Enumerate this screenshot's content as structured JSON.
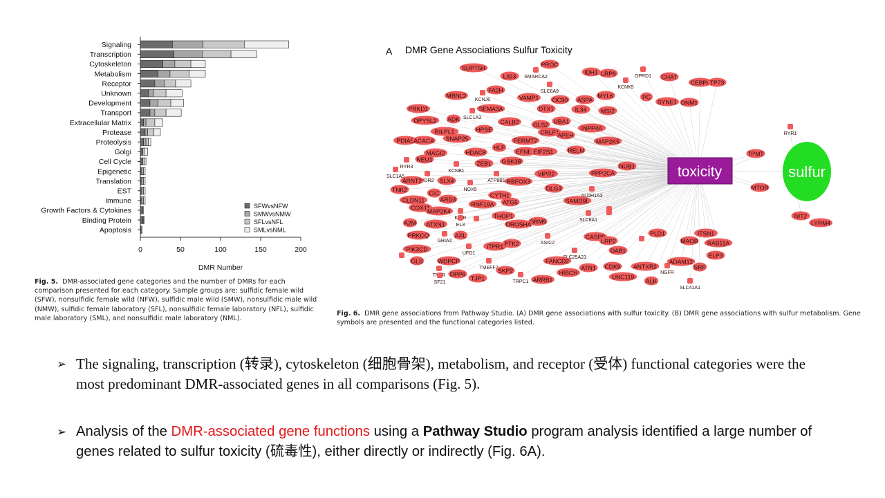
{
  "fig5": {
    "chart_data": {
      "type": "bar",
      "stacked": true,
      "orientation": "horizontal",
      "categories": [
        "Signaling",
        "Transcription",
        "Cytoskeleton",
        "Metabolism",
        "Receptor",
        "Unknown",
        "Development",
        "Transport",
        "Extracellular Matrix",
        "Protease",
        "Proteolysis",
        "Golgi",
        "Cell Cycle",
        "Epigenetic",
        "Translation",
        "EST",
        "Immune",
        "Growth Factors & Cytokines",
        "Binding Protein",
        "Apoptosis"
      ],
      "series": [
        {
          "name": "SFWvsNFW",
          "color": "#6b6b6b",
          "values": [
            40,
            42,
            28,
            22,
            18,
            10,
            12,
            12,
            4,
            6,
            4,
            2,
            2,
            1,
            1,
            1,
            1,
            2,
            2,
            1
          ]
        },
        {
          "name": "SMWvsNMW",
          "color": "#a6a6a6",
          "values": [
            38,
            35,
            15,
            15,
            12,
            6,
            10,
            6,
            3,
            3,
            3,
            1,
            1,
            1,
            1,
            1,
            1,
            1,
            1,
            1
          ]
        },
        {
          "name": "SFLvsNFL",
          "color": "#c9c9c9",
          "values": [
            52,
            36,
            20,
            24,
            14,
            16,
            16,
            14,
            11,
            8,
            3,
            2,
            2,
            2,
            2,
            2,
            2,
            0,
            1,
            0
          ]
        },
        {
          "name": "SMLvsNML",
          "color": "#efefef",
          "values": [
            55,
            32,
            18,
            20,
            19,
            20,
            16,
            19,
            10,
            8,
            3,
            4,
            2,
            2,
            2,
            2,
            2,
            1,
            1,
            0
          ]
        }
      ],
      "xlabel": "DMR Number",
      "xlim": [
        0,
        200
      ],
      "xticks": [
        "0",
        "50",
        "100",
        "150",
        "200"
      ],
      "legend_position": "bottom-right"
    },
    "caption_label": "Fig. 5.",
    "caption_text": "DMR-associated gene categories and the number of DMRs for each comparison presented for each category. Sample groups are: sulfidic female wild (SFW), nonsulfidic female wild (NFW), sulfidic male wild (SMW), nonsulfidic male wild (NMW), sulfidic female laboratory (SFL), nonsulfidic female laboratory (NFL), sulfidic male laboratory (SML), and nonsulfidic male laboratory (NML)."
  },
  "fig6": {
    "panel_letter": "A",
    "title": "DMR Gene Associations Sulfur Toxicity",
    "hub": "toxicity",
    "hub_color": "#9a1b9a",
    "sulfur": "sulfur",
    "sulfur_color": "#22dd22",
    "node_color": "#ef5b5b",
    "genes": [
      "SUPT5H",
      "PROC",
      "SMARCA2",
      "IDH1",
      "LRP6",
      "OPRD1",
      "CHAT",
      "CEBPA",
      "TP73",
      "LIG3",
      "SLC6A9",
      "KCNK5",
      "PC",
      "SYNE1",
      "DNM1",
      "VAMP1",
      "MBNL2",
      "FA2H",
      "KCNJ6",
      "OC90",
      "ASPA",
      "MYLK",
      "PRKD1",
      "SEMA3A",
      "DTX1",
      "IL34",
      "MSI2",
      "SLC1A3",
      "DPYSL2",
      "ADK",
      "CALB2",
      "GLS2",
      "UBA1",
      "INPP4A",
      "RILPL1",
      "HPSE",
      "CRLF1",
      "APEH",
      "MAP2K5",
      "SNAP25",
      "FERMT2",
      "PDIA5",
      "ACACA",
      "HLF",
      "EFNB1",
      "EIF2S1",
      "RELN",
      "MAGI2",
      "HDAC8",
      "NEU1",
      "GSK3B",
      "RYR3",
      "ZEB1",
      "NUB1",
      "KCNB1",
      "DDR2",
      "SLC1A5",
      "ATP8B1",
      "PPP2CA",
      "ARNT2",
      "VIPR2",
      "SLX4",
      "RBFOX3",
      "NOX5",
      "TNK2",
      "DLG3",
      "CIC",
      "ALDH1A3",
      "CYTH1",
      "CLDN11",
      "ARD3",
      "ATG5",
      "COX11",
      "SAMD9L",
      "RNF19A",
      "MAP2K4",
      "KIRR",
      "THOP1",
      "EL3",
      "SLC8A1",
      "FRS2",
      "A2M",
      "ATXN1",
      "GRM5",
      "DROSHA",
      "PLD1",
      "ITSN1",
      "PRKCQ",
      "GRIA2",
      "AXL",
      "CASP9",
      "MAOB",
      "RAB11A",
      "ASIC2",
      "LRP2",
      "PIK3CD",
      "UFD1",
      "ITPR1",
      "PTK2",
      "DAB1",
      "ELP3",
      "SLC25A23",
      "GLS",
      "WDPCP",
      "TMEFF2",
      "FANCD2",
      "ATN1",
      "CDK9",
      "ANTXR2",
      "ADAM12",
      "SRF",
      "TNFR",
      "SF21",
      "DPP6",
      "SKP2",
      "HIBCH",
      "NGFR",
      "TJP1",
      "TRPC1",
      "ARRB1",
      "UNC119",
      "ALK",
      "SLC41A1",
      "TPMT",
      "MTOR",
      "RYR1",
      "NIT2",
      "LYRM4",
      "EPAS1",
      "HTR2C",
      "PTCD3",
      "MBNL1"
    ],
    "caption_label": "Fig. 6.",
    "caption_text": "DMR gene associations from Pathway Studio. (A) DMR gene associations with sulfur toxicity. (B) DMR gene associations with sulfur metabolism. Gene symbols are presented and the functional categories listed."
  },
  "bullets": {
    "b1_text": "The signaling, transcription (转录), cytoskeleton (细胞骨架), metabolism, and receptor (受体) functional categories were the most predominant DMR-associated genes in all comparisons (Fig. 5).",
    "b2_pre": "Analysis of the ",
    "b2_red": "DMR-associated gene functions",
    "b2_mid": " using a ",
    "b2_bold": "Pathway Studio",
    "b2_post": " program analysis identified a large number of genes related to sulfur toxicity (硫毒性), either directly or indirectly (Fig. 6A)."
  }
}
